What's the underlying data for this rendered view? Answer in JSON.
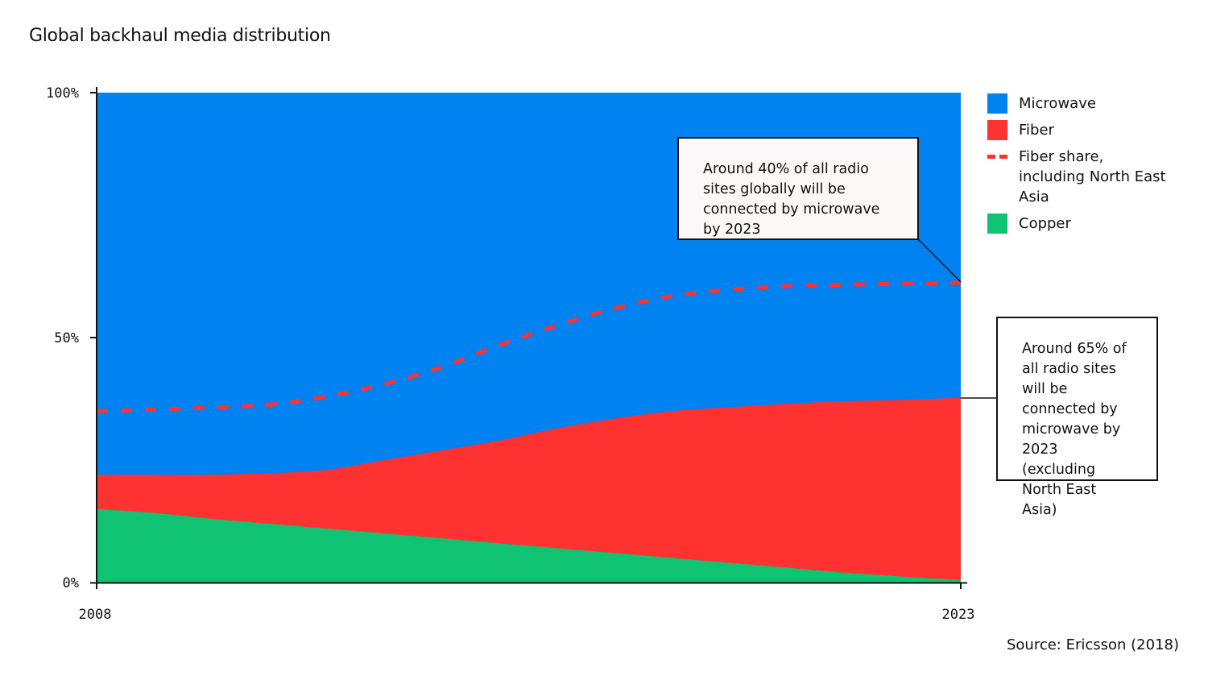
{
  "chart_data": {
    "type": "area",
    "title": "Global backhaul media distribution",
    "x": [
      2008,
      2009,
      2010,
      2011,
      2012,
      2013,
      2014,
      2015,
      2016,
      2017,
      2018,
      2019,
      2020,
      2021,
      2022,
      2023
    ],
    "x_ticks": [
      "2008",
      "2023"
    ],
    "y_ticks": [
      "0%",
      "50%",
      "100%"
    ],
    "ylim": [
      0,
      100
    ],
    "xlim": [
      2008,
      2023
    ],
    "stacked": true,
    "series": [
      {
        "name": "Copper",
        "color": "#0fc373",
        "values": [
          15,
          14.2,
          13,
          12,
          11,
          10,
          9,
          8,
          7,
          6,
          5,
          4,
          3,
          2,
          1.2,
          0.5
        ]
      },
      {
        "name": "Fiber",
        "color": "#ff3232",
        "values": [
          7,
          7.8,
          9,
          10.3,
          12,
          15,
          18,
          21,
          24.5,
          27.5,
          30,
          31.8,
          33.5,
          35,
          36.1,
          37.2
        ]
      },
      {
        "name": "Microwave",
        "color": "#0082f0",
        "values": [
          78,
          78,
          78,
          77.7,
          77,
          75,
          73,
          71,
          68.5,
          66.5,
          65,
          64.2,
          63.5,
          63,
          62.7,
          62.3
        ]
      }
    ],
    "line_series": {
      "name": "Fiber share, including North East Asia",
      "color": "#ff3232",
      "style": "dashed",
      "values": [
        35,
        35.3,
        35.7,
        36.3,
        38,
        40.5,
        44,
        48.5,
        52.5,
        56,
        58.5,
        59.8,
        60.5,
        60.8,
        61,
        61.2
      ]
    },
    "legend_position": "right",
    "grid": false,
    "annotations": [
      "Around 40% of all radio sites globally will be connected by microwave by 2023",
      "Around 65% of all radio sites will be connected by microwave by 2023 (excluding North East Asia)"
    ],
    "source": "Source: Ericsson (2018)"
  },
  "legend": [
    {
      "label": "Microwave",
      "color": "#0082f0",
      "kind": "box"
    },
    {
      "label": "Fiber",
      "color": "#ff3232",
      "kind": "box"
    },
    {
      "label": "Fiber share, including North East Asia",
      "color": "#ff3232",
      "kind": "dash"
    },
    {
      "label": "Copper",
      "color": "#0fc373",
      "kind": "box"
    }
  ]
}
